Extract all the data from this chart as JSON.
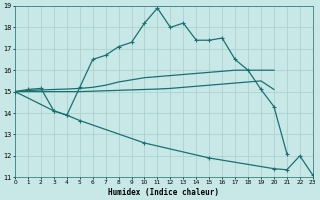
{
  "xlabel": "Humidex (Indice chaleur)",
  "bg_color": "#c8e8e8",
  "grid_color": "#a8cece",
  "line_color": "#1a7070",
  "xlim": [
    0,
    23
  ],
  "ylim": [
    11,
    19
  ],
  "xtick_vals": [
    0,
    1,
    2,
    3,
    4,
    5,
    6,
    7,
    8,
    9,
    10,
    11,
    12,
    13,
    14,
    15,
    16,
    17,
    18,
    19,
    20,
    21,
    22,
    23
  ],
  "ytick_vals": [
    11,
    12,
    13,
    14,
    15,
    16,
    17,
    18,
    19
  ],
  "line1_x": [
    0,
    1,
    2,
    3,
    4,
    5,
    6,
    7,
    8,
    9,
    10,
    11,
    12,
    13,
    14,
    15,
    16,
    17,
    18,
    19,
    20,
    21
  ],
  "line1_y": [
    15,
    15.1,
    15.15,
    14.1,
    13.9,
    15.2,
    16.5,
    16.7,
    17.1,
    17.3,
    18.2,
    18.9,
    18.0,
    18.2,
    17.4,
    17.4,
    17.5,
    16.5,
    16.0,
    15.1,
    14.3,
    12.1
  ],
  "line2_x": [
    0,
    1,
    2,
    3,
    4,
    5,
    6,
    7,
    8,
    9,
    10,
    11,
    12,
    13,
    14,
    15,
    16,
    17,
    18,
    19,
    20
  ],
  "line2_y": [
    15,
    15.05,
    15.08,
    15.1,
    15.12,
    15.15,
    15.2,
    15.3,
    15.45,
    15.55,
    15.65,
    15.7,
    15.75,
    15.8,
    15.85,
    15.9,
    15.95,
    16.0,
    16.0,
    16.0,
    16.0
  ],
  "line3_x": [
    0,
    1,
    2,
    3,
    4,
    5,
    6,
    7,
    8,
    9,
    10,
    11,
    12,
    13,
    14,
    15,
    16,
    17,
    18,
    19,
    20
  ],
  "line3_y": [
    15,
    15.0,
    15.0,
    15.0,
    15.0,
    15.0,
    15.02,
    15.04,
    15.06,
    15.08,
    15.1,
    15.12,
    15.15,
    15.2,
    15.25,
    15.3,
    15.35,
    15.4,
    15.45,
    15.5,
    15.1
  ],
  "line4_x": [
    0,
    3,
    4,
    5,
    10,
    15,
    20,
    21,
    22,
    23
  ],
  "line4_y": [
    15,
    14.1,
    13.9,
    13.65,
    12.6,
    11.9,
    11.4,
    11.35,
    12.0,
    11.1
  ]
}
